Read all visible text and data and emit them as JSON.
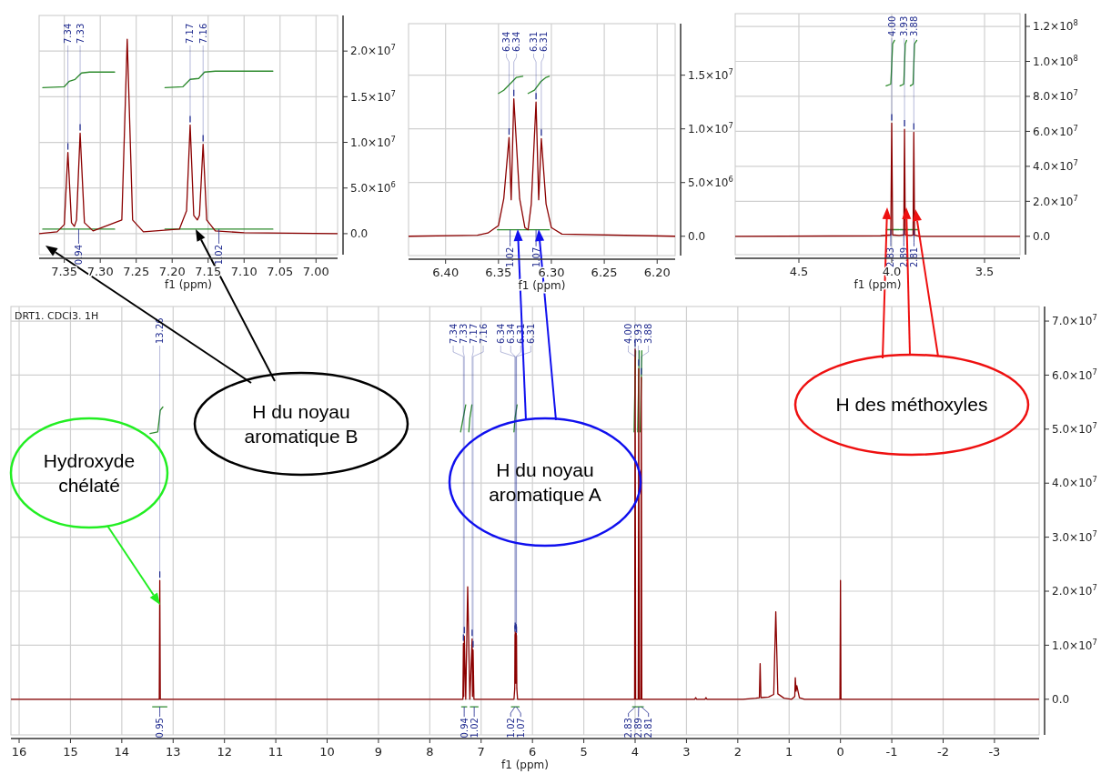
{
  "chart_data": [
    {
      "type": "line",
      "xlabel": "f1 (ppm)",
      "xlim": [
        7.385,
        6.97
      ],
      "ylim": [
        -2300000,
        23900000
      ],
      "grid": true,
      "xticks": [
        7.35,
        {
          "value": 7.3,
          "label": "7.30"
        },
        7.25,
        {
          "value": 7.2,
          "label": "7.20"
        },
        7.15,
        {
          "value": 7.1,
          "label": "7.10"
        },
        7.05,
        {
          "value": 7,
          "label": "7.00"
        }
      ],
      "yticks": [
        {
          "value": 0,
          "label": "0.0"
        },
        {
          "value": 5000000,
          "label": "5.0×10$^{6}$"
        },
        {
          "value": 10000000,
          "label": "1.0×10$^{7}$"
        },
        {
          "value": 15000000,
          "label": "1.5×10$^{7}$"
        },
        {
          "value": 20000000,
          "label": "2.0×10$^{7}$"
        }
      ],
      "series": [
        {
          "color": "#8b0000",
          "x": [
            7.385,
            7.36,
            7.35,
            7.345,
            7.34,
            7.336,
            7.333,
            7.328,
            7.322,
            7.31,
            7.27,
            7.2625,
            7.255,
            7.24,
            7.19,
            7.18,
            7.175,
            7.17,
            7.165,
            7.162,
            7.157,
            7.152,
            7.14,
            7.1,
            6.97
          ],
          "values": [
            0,
            200000,
            1000000,
            8900000,
            1200000,
            800000,
            1500000,
            11000000,
            1200000,
            300000,
            1500000,
            21300000,
            1500000,
            200000,
            500000,
            2500000,
            11900000,
            2000000,
            1500000,
            2000000,
            9800000,
            1500000,
            300000,
            100000,
            0
          ]
        },
        {
          "color": "#2e8b2e",
          "x": [
            7.38,
            7.35,
            7.343,
            7.335,
            7.326,
            7.315,
            7.28,
            7.245,
            7.21,
            7.185,
            7.175,
            7.163,
            7.155,
            7.14,
            7.06
          ],
          "values": [
            16000000,
            16100000,
            16700000,
            16900000,
            17600000,
            17700000,
            17700000,
            null,
            16000000,
            16100000,
            16900000,
            17000000,
            17700000,
            17800000,
            17800000
          ]
        },
        {
          "color": "#2e8b2e",
          "x": [
            7.38,
            7.28,
            7.245,
            7.21,
            7.06
          ],
          "values": [
            500000,
            500000,
            null,
            500000,
            500000
          ]
        }
      ],
      "annotations": [
        {
          "text": "7.34",
          "x": 7.345,
          "y": 8900000
        },
        {
          "text": "7.33",
          "x": 7.328,
          "y": 11000000
        },
        {
          "text": "7.17",
          "x": 7.175,
          "y": 11900000
        },
        {
          "text": "7.16",
          "x": 7.157,
          "y": 9800000
        },
        {
          "text": "0.94",
          "x": 7.33,
          "y": 500000
        },
        {
          "text": "1.02",
          "x": 7.135,
          "y": 500000
        }
      ]
    },
    {
      "type": "line",
      "xlabel": "f1 (ppm)",
      "xlim": [
        6.435,
        6.183
      ],
      "ylim": [
        -1800000,
        19800000
      ],
      "grid": true,
      "xticks": [
        {
          "value": 6.4,
          "label": "6.40"
        },
        6.35,
        {
          "value": 6.3,
          "label": "6.30"
        },
        6.25,
        {
          "value": 6.2,
          "label": "6.20"
        }
      ],
      "yticks": [
        {
          "value": 0,
          "label": "0.0"
        },
        {
          "value": 5000000,
          "label": "5.0×10$^{6}$"
        },
        {
          "value": 10000000,
          "label": "1.0×10$^{7}$"
        },
        {
          "value": 15000000,
          "label": "1.5×10$^{7}$"
        }
      ],
      "series": [
        {
          "color": "#8b0000",
          "x": [
            6.435,
            6.37,
            6.36,
            6.35,
            6.345,
            6.34,
            6.338,
            6.3355,
            6.33,
            6.325,
            6.322,
            6.319,
            6.3145,
            6.312,
            6.3095,
            6.305,
            6.3,
            6.29,
            6.183
          ],
          "values": [
            0,
            100000,
            300000,
            1000000,
            3500000,
            9200000,
            3400000,
            12800000,
            3500000,
            800000,
            600000,
            3000000,
            12500000,
            3400000,
            9100000,
            3000000,
            800000,
            200000,
            0
          ]
        },
        {
          "color": "#2e8b2e",
          "x": [
            6.35,
            6.345,
            6.338,
            6.333,
            6.327,
            6.325,
            6.322,
            6.316,
            6.31,
            6.305,
            6.302
          ],
          "values": [
            13300000,
            13600000,
            14300000,
            14800000,
            14900000,
            null,
            13300000,
            13600000,
            14400000,
            14800000,
            14900000
          ]
        },
        {
          "color": "#2e8b2e",
          "x": [
            6.351,
            6.328,
            6.3275,
            6.327,
            6.302
          ],
          "values": [
            600000,
            600000,
            null,
            600000,
            600000
          ]
        }
      ],
      "annotations": [
        {
          "text": "6.34",
          "x": 6.34,
          "y": 9200000
        },
        {
          "text": "6.34",
          "x": 6.3355,
          "y": 12800000
        },
        {
          "text": "6.31",
          "x": 6.3145,
          "y": 12500000
        },
        {
          "text": "6.31",
          "x": 6.3095,
          "y": 9100000
        },
        {
          "text": "1.02",
          "x": 6.339,
          "y": 600000
        },
        {
          "text": "1.07",
          "x": 6.3145,
          "y": 600000
        }
      ]
    },
    {
      "type": "line",
      "xlabel": "f1 (ppm)",
      "xlim": [
        4.843,
        3.309
      ],
      "ylim": [
        -10500000,
        127300000
      ],
      "grid": true,
      "xticks": [
        4.5,
        {
          "value": 4,
          "label": "4.0"
        },
        3.5
      ],
      "yticks": [
        {
          "value": 0,
          "label": "0.0"
        },
        {
          "value": 20000000,
          "label": "2.0×10$^{7}$"
        },
        {
          "value": 40000000,
          "label": "4.0×10$^{7}$"
        },
        {
          "value": 60000000,
          "label": "6.0×10$^{7}$"
        },
        {
          "value": 80000000,
          "label": "8.0×10$^{7}$"
        },
        {
          "value": 100000000,
          "label": "1.0×10$^{8}$"
        },
        {
          "value": 120000000,
          "label": "1.2×10$^{8}$"
        }
      ],
      "series": [
        {
          "color": "#8b0000",
          "x": [
            4.843,
            4.06,
            4.005,
            4.0,
            3.995,
            3.96,
            3.935,
            3.931,
            3.927,
            3.9,
            3.885,
            3.881,
            3.877,
            3.85,
            3.309
          ],
          "values": [
            0,
            300000,
            800000,
            64700000,
            800000,
            500000,
            800000,
            61200000,
            800000,
            500000,
            800000,
            59500000,
            800000,
            0,
            0
          ]
        },
        {
          "color": "#2e8b2e",
          "x": [
            4.03,
            4.005,
            4.0,
            3.995,
            3.985,
            3.97,
            3.955,
            3.935,
            3.931,
            3.927,
            3.92,
            3.91,
            3.9,
            3.885,
            3.881,
            3.877,
            3.865
          ],
          "values": [
            86000000,
            87000000,
            98000000,
            110000000,
            112000000,
            null,
            86000000,
            87000000,
            98000000,
            110000000,
            112000000,
            null,
            86000000,
            87000000,
            98000000,
            110000000,
            112000000
          ]
        },
        {
          "color": "#2e8b2e",
          "x": [
            4.03,
            3.96,
            3.957,
            3.955,
            3.905,
            3.902,
            3.9,
            3.86
          ],
          "values": [
            3800000,
            3800000,
            null,
            3800000,
            3800000,
            null,
            3800000,
            3800000
          ]
        }
      ],
      "annotations": [
        {
          "text": "4.00",
          "x": 4.0,
          "y": 64700000
        },
        {
          "text": "3.93",
          "x": 3.931,
          "y": 61200000
        },
        {
          "text": "3.88",
          "x": 3.881,
          "y": 59500000
        },
        {
          "text": "2.83",
          "x": 4.005,
          "y": 3800000
        },
        {
          "text": "2.89",
          "x": 3.935,
          "y": 3800000
        },
        {
          "text": "2.81",
          "x": 3.88,
          "y": 3800000
        }
      ]
    },
    {
      "type": "line",
      "title": "DRT1. CDCl3. 1H",
      "xlabel": "f1 (ppm)",
      "xlim": [
        16.16,
        -3.87
      ],
      "ylim": [
        -6600000,
        72700000
      ],
      "grid": true,
      "xticks": [
        16,
        15,
        14,
        13,
        12,
        11,
        10,
        9,
        8,
        7,
        6,
        5,
        4,
        3,
        2,
        1,
        0,
        -1,
        -2,
        -3
      ],
      "yticks": [
        {
          "value": 0,
          "label": "0.0"
        },
        {
          "value": 10000000,
          "label": "1.0×10$^{7}$"
        },
        {
          "value": 20000000,
          "label": "2.0×10$^{7}$"
        },
        {
          "value": 30000000,
          "label": "3.0×10$^{7}$"
        },
        {
          "value": 40000000,
          "label": "4.0×10$^{7}$"
        },
        {
          "value": 50000000,
          "label": "5.0×10$^{7}$"
        },
        {
          "value": 60000000,
          "label": "6.0×10$^{7}$"
        },
        {
          "value": 70000000,
          "label": "7.0×10$^{7}$"
        }
      ],
      "series": [
        {
          "color": "#8b0000",
          "x": [
            16.16,
            13.3,
            13.27,
            13.26,
            13.25,
            7.4,
            7.355,
            7.345,
            7.338,
            7.328,
            7.3,
            7.262,
            7.22,
            7.175,
            7.167,
            7.157,
            7.14,
            6.36,
            6.345,
            6.34,
            6.338,
            6.336,
            6.33,
            6.32,
            6.316,
            6.313,
            6.311,
            6.305,
            6.29,
            4.12,
            4.01,
            4.0,
            3.99,
            3.94,
            3.93,
            3.92,
            3.89,
            3.88,
            3.87,
            2.84,
            2.82,
            2.8,
            2.64,
            2.62,
            2.6,
            1.9,
            1.65,
            1.58,
            1.565,
            1.55,
            1.4,
            1.3,
            1.26,
            1.22,
            1.1,
            0.95,
            0.89,
            0.88,
            0.865,
            0.85,
            0.8,
            0.7,
            0.01,
            0,
            -0.01,
            -3.87
          ],
          "values": [
            0,
            0,
            0,
            22000000,
            0,
            0,
            0,
            10300000,
            500000,
            11700000,
            0,
            20800000,
            0,
            11200000,
            500000,
            9100000,
            0,
            0,
            2000000,
            12000000,
            5000000,
            12500000,
            3000000,
            3000000,
            12200000,
            5000000,
            11800000,
            2000000,
            0,
            0,
            0,
            64800000,
            0,
            0,
            61200000,
            0,
            0,
            59600000,
            0,
            0,
            300000,
            0,
            0,
            300000,
            0,
            0,
            200000,
            300000,
            6600000,
            300000,
            400000,
            900000,
            16200000,
            1000000,
            200000,
            0,
            500000,
            4000000,
            1500000,
            2500000,
            300000,
            0,
            0,
            22000000,
            0,
            0
          ]
        },
        {
          "color": "#2e8b2e",
          "x": [
            13.45,
            13.3,
            13.25,
            13.2,
            7.42,
            7.4,
            7.35,
            7.3,
            7.26,
            7.24,
            7.22,
            7.18,
            7.12,
            7.06,
            6.8,
            6.36,
            6.34,
            6.3,
            5.0,
            4.02,
            3.99,
            3.97,
            3.95,
            3.92,
            3.91,
            3.9,
            3.87
          ],
          "values": [
            49200000,
            49500000,
            53500000,
            54100000,
            null,
            49500000,
            52000000,
            54500000,
            null,
            49500000,
            52000000,
            54500000,
            null,
            null,
            null,
            49500000,
            52000000,
            54500000,
            null,
            49500000,
            64500000,
            null,
            49500000,
            64500000,
            null,
            49500000,
            64500000
          ]
        },
        {
          "color": "#2e8b2e",
          "x": [
            13.4,
            13.12,
            10,
            7.38,
            7.28,
            7.245,
            7.21,
            7.06,
            6.7,
            6.41,
            6.26,
            5,
            4.05,
            3.84
          ],
          "values": [
            -1400000,
            -1400000,
            null,
            -1400000,
            -1400000,
            null,
            -1400000,
            -1400000,
            null,
            -1400000,
            -1400000,
            null,
            -1400000,
            -1400000
          ]
        }
      ],
      "annotations": [
        {
          "text": "13.26",
          "x": 13.26,
          "y": 22000000
        },
        {
          "text": "7.34",
          "x": 7.345,
          "y": 10300000
        },
        {
          "text": "7.33",
          "x": 7.328,
          "y": 11700000
        },
        {
          "text": "7.17",
          "x": 7.175,
          "y": 11200000
        },
        {
          "text": "7.16",
          "x": 7.157,
          "y": 9100000
        },
        {
          "text": "6.34",
          "x": 6.34,
          "y": 12000000
        },
        {
          "text": "6.34",
          "x": 6.336,
          "y": 12500000
        },
        {
          "text": "6.31",
          "x": 6.316,
          "y": 12200000
        },
        {
          "text": "6.31",
          "x": 6.311,
          "y": 11800000
        },
        {
          "text": "4.00",
          "x": 4.0,
          "y": 64800000
        },
        {
          "text": "3.93",
          "x": 3.93,
          "y": 61200000
        },
        {
          "text": "3.88",
          "x": 3.88,
          "y": 59600000
        },
        {
          "text": "0.95",
          "x": 13.26,
          "y": -1400000
        },
        {
          "text": "0.94",
          "x": 7.33,
          "y": -1400000
        },
        {
          "text": "1.02",
          "x": 7.135,
          "y": -1400000
        },
        {
          "text": "1.02",
          "x": 6.34,
          "y": -1400000
        },
        {
          "text": "1.07",
          "x": 6.315,
          "y": -1400000
        },
        {
          "text": "2.83",
          "x": 3.995,
          "y": -1400000
        },
        {
          "text": "2.89",
          "x": 3.93,
          "y": -1400000
        },
        {
          "text": "2.81",
          "x": 3.88,
          "y": -1400000
        },
        "Hydroxyde chélaté",
        "H du noyau aromatique B",
        "H du noyau aromatique A",
        "H des méthoxyles"
      ]
    }
  ]
}
